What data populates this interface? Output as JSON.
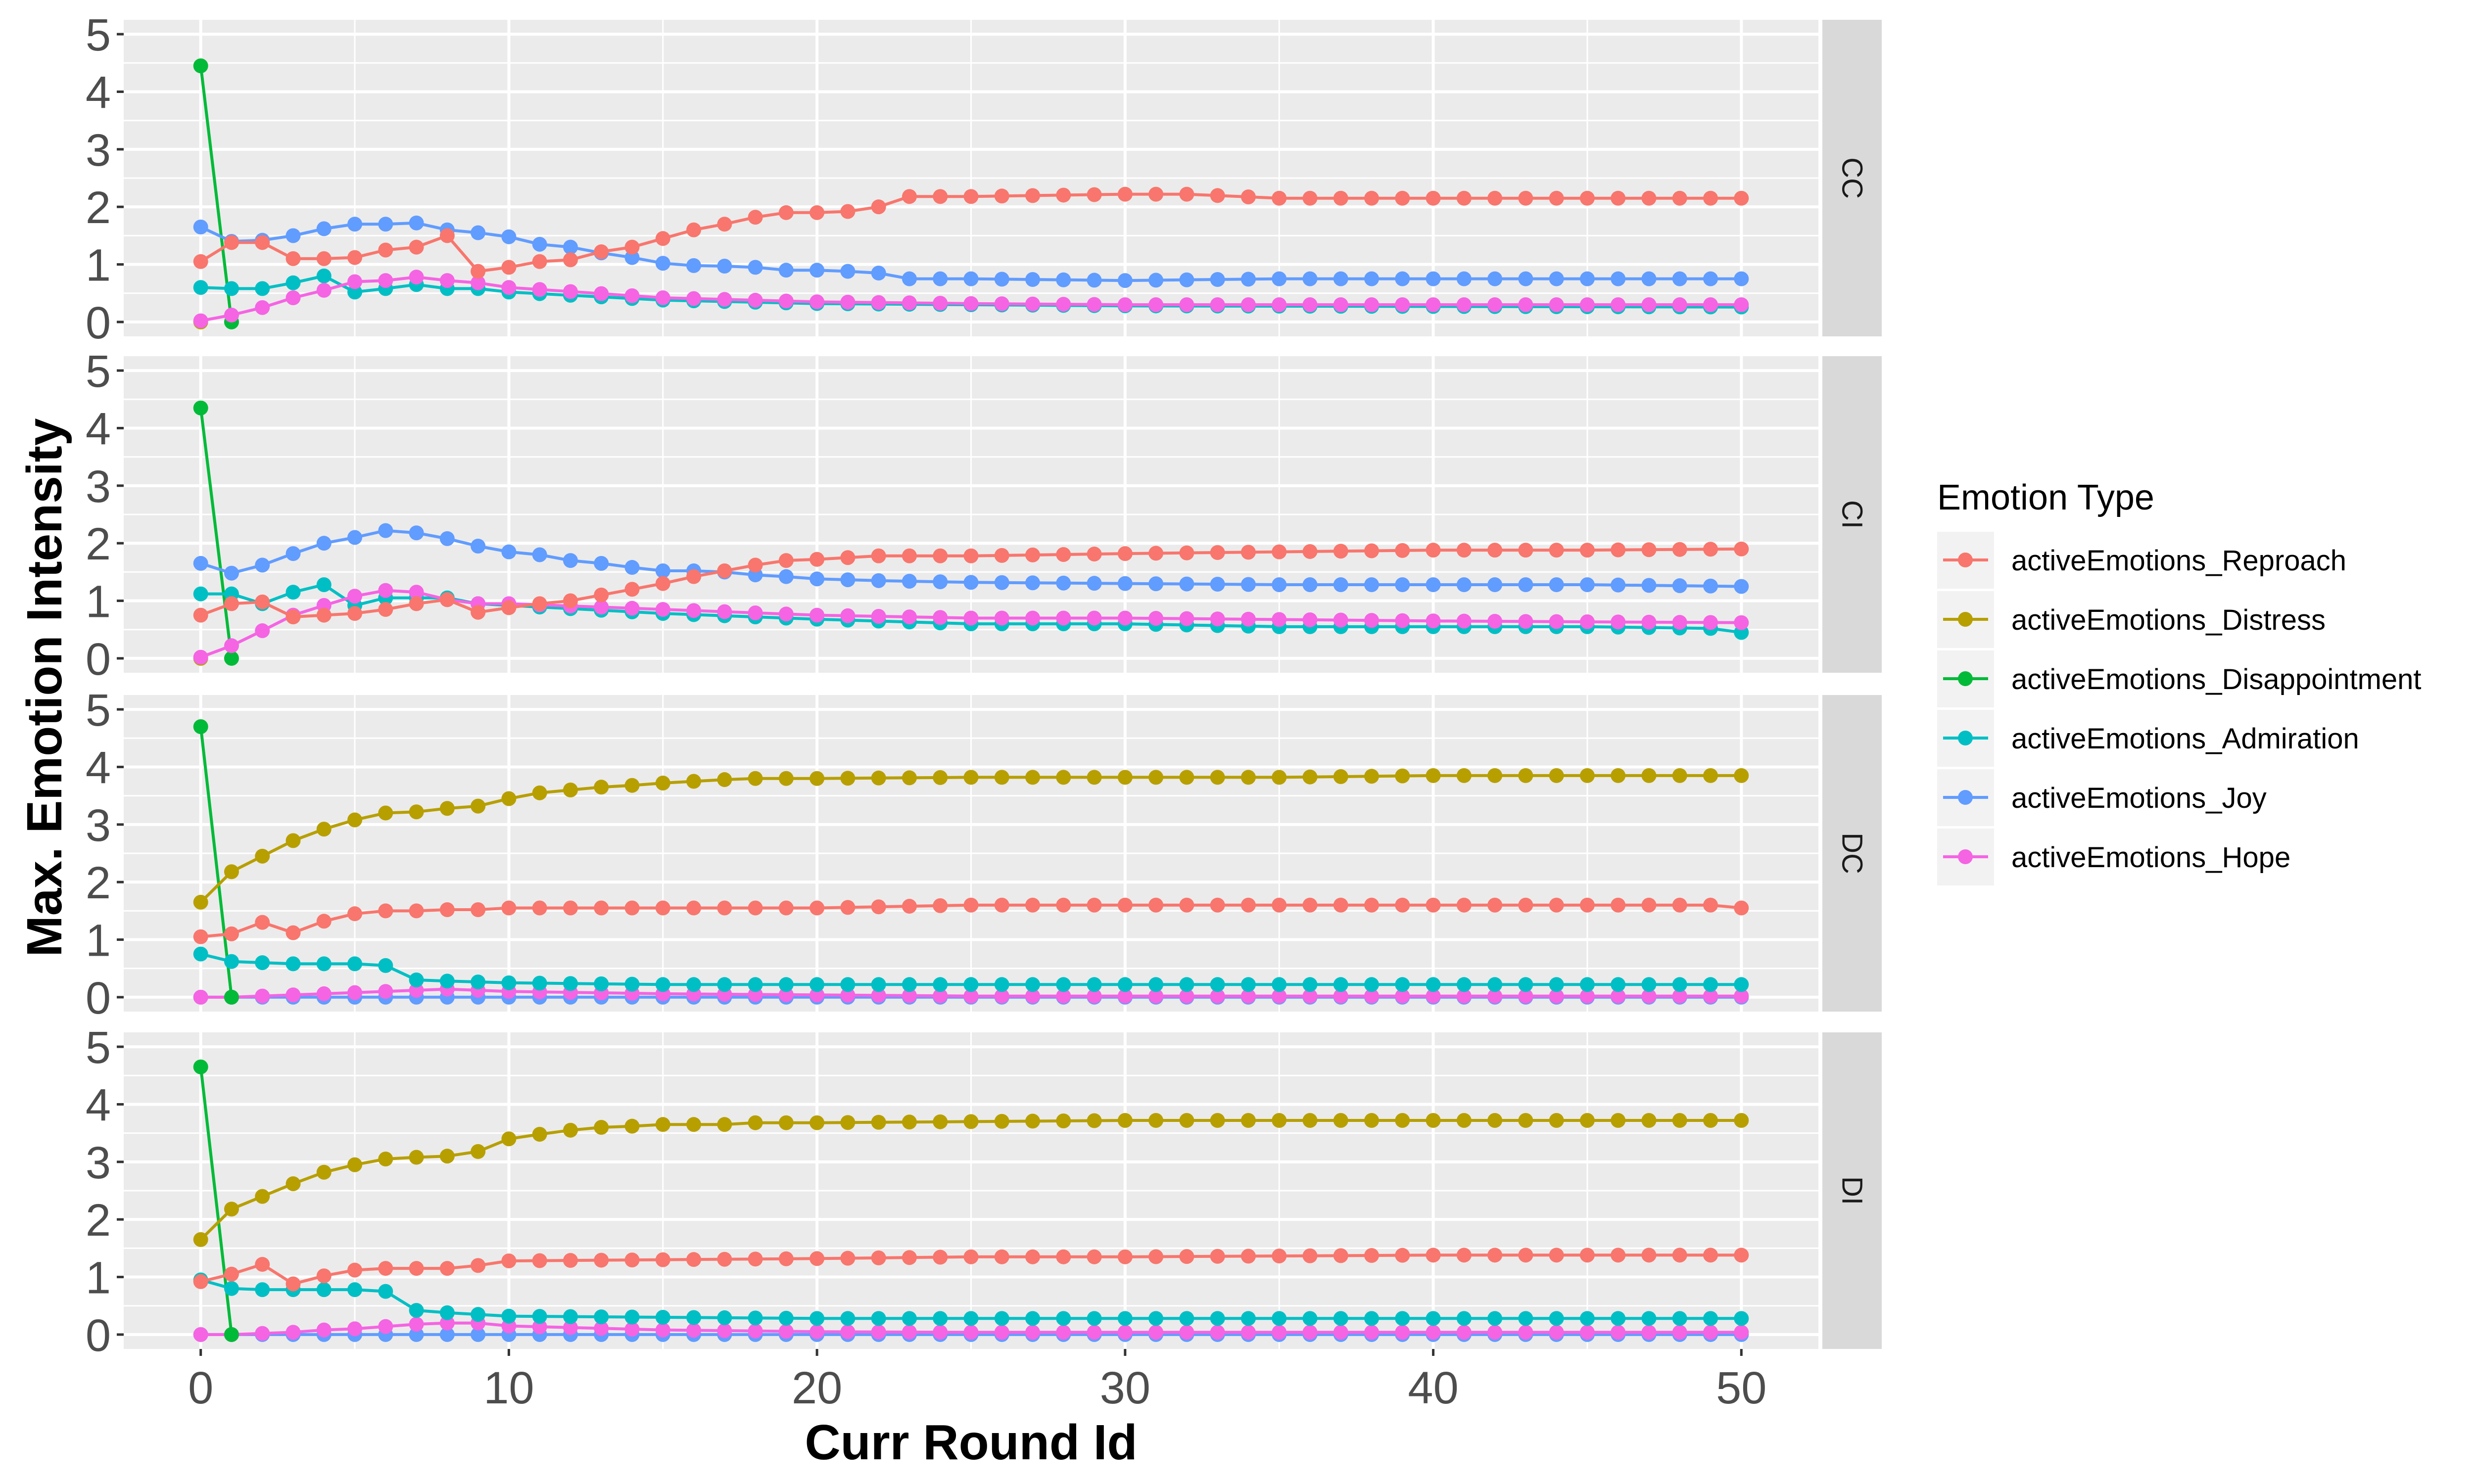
{
  "chart_data": {
    "type": "line",
    "facet_layout": "vertical facets, strip labels on right",
    "xlabel": "Curr Round Id",
    "ylabel": "Max. Emotion Intensity",
    "xlim": [
      -2.5,
      52.5
    ],
    "ylim": [
      -0.25,
      5.25
    ],
    "x_ticks": [
      0,
      10,
      20,
      30,
      40,
      50
    ],
    "y_ticks": [
      0,
      1,
      2,
      3,
      4,
      5
    ],
    "grid": true,
    "legend": {
      "title": "Emotion Type",
      "placement": "right",
      "entries": [
        {
          "name": "activeEmotions_Reproach",
          "color": "#F8766D"
        },
        {
          "name": "activeEmotions_Distress",
          "color": "#B79F00"
        },
        {
          "name": "activeEmotions_Disappointment",
          "color": "#00BA38"
        },
        {
          "name": "activeEmotions_Admiration",
          "color": "#00BFC4"
        },
        {
          "name": "activeEmotions_Joy",
          "color": "#619CFF"
        },
        {
          "name": "activeEmotions_Hope",
          "color": "#F564E3"
        }
      ]
    },
    "panels": [
      {
        "label": "CC",
        "series": [
          {
            "name": "activeEmotions_Distress",
            "x": [
              0
            ],
            "y": [
              0
            ]
          },
          {
            "name": "activeEmotions_Disappointment",
            "x": [
              0,
              1
            ],
            "y": [
              4.45,
              0
            ]
          },
          {
            "name": "activeEmotions_Admiration",
            "x": [
              0,
              1,
              2,
              3,
              4,
              5,
              6,
              7,
              8,
              9,
              10,
              15,
              20,
              25,
              30,
              40,
              50
            ],
            "y": [
              0.6,
              0.58,
              0.58,
              0.68,
              0.8,
              0.52,
              0.58,
              0.65,
              0.58,
              0.58,
              0.52,
              0.38,
              0.32,
              0.3,
              0.28,
              0.27,
              0.26
            ]
          },
          {
            "name": "activeEmotions_Hope",
            "x": [
              0,
              1,
              2,
              3,
              4,
              5,
              6,
              7,
              8,
              9,
              10,
              15,
              20,
              25,
              30,
              40,
              50
            ],
            "y": [
              0.02,
              0.12,
              0.25,
              0.42,
              0.55,
              0.7,
              0.72,
              0.78,
              0.72,
              0.68,
              0.6,
              0.42,
              0.35,
              0.32,
              0.3,
              0.3,
              0.3
            ]
          },
          {
            "name": "activeEmotions_Joy",
            "x": [
              0,
              1,
              2,
              3,
              4,
              5,
              6,
              7,
              8,
              9,
              10,
              11,
              12,
              13,
              14,
              15,
              16,
              17,
              18,
              19,
              20,
              21,
              22,
              23,
              25,
              30,
              35,
              40,
              45,
              50
            ],
            "y": [
              1.65,
              1.4,
              1.42,
              1.5,
              1.62,
              1.7,
              1.7,
              1.72,
              1.6,
              1.55,
              1.48,
              1.35,
              1.3,
              1.2,
              1.12,
              1.02,
              0.98,
              0.97,
              0.95,
              0.9,
              0.9,
              0.88,
              0.85,
              0.75,
              0.75,
              0.72,
              0.75,
              0.75,
              0.75,
              0.75
            ]
          },
          {
            "name": "activeEmotions_Reproach",
            "x": [
              0,
              1,
              2,
              3,
              4,
              5,
              6,
              7,
              8,
              9,
              10,
              11,
              12,
              13,
              14,
              15,
              16,
              17,
              18,
              19,
              20,
              21,
              22,
              23,
              25,
              30,
              32,
              35,
              40,
              45,
              50
            ],
            "y": [
              1.05,
              1.38,
              1.38,
              1.1,
              1.1,
              1.12,
              1.25,
              1.3,
              1.5,
              0.88,
              0.95,
              1.05,
              1.08,
              1.22,
              1.3,
              1.45,
              1.6,
              1.7,
              1.82,
              1.9,
              1.9,
              1.92,
              2.0,
              2.18,
              2.18,
              2.22,
              2.22,
              2.15,
              2.15,
              2.15,
              2.15
            ]
          }
        ]
      },
      {
        "label": "CI",
        "series": [
          {
            "name": "activeEmotions_Distress",
            "x": [
              0
            ],
            "y": [
              0
            ]
          },
          {
            "name": "activeEmotions_Disappointment",
            "x": [
              0,
              1
            ],
            "y": [
              4.35,
              0
            ]
          },
          {
            "name": "activeEmotions_Admiration",
            "x": [
              0,
              1,
              2,
              3,
              4,
              5,
              6,
              7,
              8,
              9,
              10,
              15,
              20,
              25,
              30,
              35,
              40,
              45,
              49,
              50
            ],
            "y": [
              1.12,
              1.12,
              0.95,
              1.15,
              1.28,
              0.92,
              1.05,
              1.05,
              1.05,
              0.95,
              0.92,
              0.78,
              0.68,
              0.6,
              0.6,
              0.55,
              0.55,
              0.55,
              0.52,
              0.45
            ]
          },
          {
            "name": "activeEmotions_Hope",
            "x": [
              0,
              1,
              2,
              3,
              4,
              5,
              6,
              7,
              8,
              9,
              10,
              15,
              20,
              25,
              30,
              40,
              50
            ],
            "y": [
              0.02,
              0.22,
              0.48,
              0.75,
              0.92,
              1.08,
              1.18,
              1.15,
              1.02,
              0.95,
              0.95,
              0.85,
              0.75,
              0.7,
              0.7,
              0.65,
              0.62
            ]
          },
          {
            "name": "activeEmotions_Joy",
            "x": [
              0,
              1,
              2,
              3,
              4,
              5,
              6,
              7,
              8,
              9,
              10,
              11,
              12,
              13,
              14,
              15,
              16,
              17,
              18,
              19,
              20,
              22,
              25,
              30,
              35,
              40,
              45,
              50
            ],
            "y": [
              1.65,
              1.48,
              1.62,
              1.82,
              2.0,
              2.1,
              2.22,
              2.18,
              2.08,
              1.95,
              1.85,
              1.8,
              1.7,
              1.65,
              1.58,
              1.52,
              1.52,
              1.5,
              1.45,
              1.42,
              1.38,
              1.35,
              1.32,
              1.3,
              1.28,
              1.28,
              1.28,
              1.25
            ]
          },
          {
            "name": "activeEmotions_Reproach",
            "x": [
              0,
              1,
              2,
              3,
              4,
              5,
              6,
              7,
              8,
              9,
              10,
              11,
              12,
              13,
              14,
              15,
              16,
              17,
              18,
              19,
              20,
              22,
              25,
              30,
              35,
              40,
              45,
              50
            ],
            "y": [
              0.75,
              0.95,
              0.98,
              0.72,
              0.75,
              0.78,
              0.85,
              0.95,
              1.02,
              0.8,
              0.88,
              0.95,
              1.0,
              1.1,
              1.2,
              1.3,
              1.42,
              1.52,
              1.62,
              1.7,
              1.72,
              1.78,
              1.78,
              1.82,
              1.85,
              1.88,
              1.88,
              1.9
            ]
          }
        ]
      },
      {
        "label": "DC",
        "series": [
          {
            "name": "activeEmotions_Joy",
            "x": [
              0,
              1,
              2,
              3,
              4,
              5,
              10,
              20,
              30,
              40,
              50
            ],
            "y": [
              0,
              0,
              0,
              0,
              0,
              0,
              0,
              0,
              0,
              0,
              0
            ]
          },
          {
            "name": "activeEmotions_Hope",
            "x": [
              0,
              1,
              2,
              3,
              4,
              5,
              6,
              7,
              8,
              9,
              10,
              15,
              20,
              25,
              30,
              40,
              50
            ],
            "y": [
              0,
              0,
              0.02,
              0.04,
              0.06,
              0.08,
              0.1,
              0.12,
              0.14,
              0.12,
              0.1,
              0.06,
              0.04,
              0.02,
              0.02,
              0.02,
              0.02
            ]
          },
          {
            "name": "activeEmotions_Disappointment",
            "x": [
              0,
              1
            ],
            "y": [
              4.7,
              0
            ]
          },
          {
            "name": "activeEmotions_Admiration",
            "x": [
              0,
              1,
              2,
              3,
              4,
              5,
              6,
              7,
              8,
              10,
              15,
              20,
              30,
              40,
              50
            ],
            "y": [
              0.75,
              0.62,
              0.6,
              0.58,
              0.58,
              0.58,
              0.55,
              0.3,
              0.28,
              0.25,
              0.22,
              0.22,
              0.22,
              0.22,
              0.22
            ]
          },
          {
            "name": "activeEmotions_Reproach",
            "x": [
              0,
              1,
              2,
              3,
              4,
              5,
              6,
              7,
              8,
              9,
              10,
              15,
              20,
              25,
              30,
              40,
              49,
              50
            ],
            "y": [
              1.05,
              1.1,
              1.3,
              1.12,
              1.32,
              1.45,
              1.5,
              1.5,
              1.52,
              1.52,
              1.55,
              1.55,
              1.55,
              1.6,
              1.6,
              1.6,
              1.6,
              1.55
            ]
          },
          {
            "name": "activeEmotions_Distress",
            "x": [
              0,
              1,
              2,
              3,
              4,
              5,
              6,
              7,
              8,
              9,
              10,
              11,
              12,
              13,
              14,
              15,
              16,
              17,
              18,
              19,
              20,
              25,
              30,
              35,
              40,
              45,
              50
            ],
            "y": [
              1.65,
              2.18,
              2.45,
              2.72,
              2.92,
              3.08,
              3.2,
              3.22,
              3.28,
              3.32,
              3.45,
              3.55,
              3.6,
              3.65,
              3.68,
              3.72,
              3.75,
              3.78,
              3.8,
              3.8,
              3.8,
              3.82,
              3.82,
              3.82,
              3.85,
              3.85,
              3.85
            ]
          }
        ]
      },
      {
        "label": "DI",
        "series": [
          {
            "name": "activeEmotions_Joy",
            "x": [
              0,
              1,
              2,
              3,
              4,
              5,
              10,
              20,
              30,
              40,
              50
            ],
            "y": [
              0,
              0,
              0,
              0,
              0,
              0,
              0,
              0,
              0,
              0,
              0
            ]
          },
          {
            "name": "activeEmotions_Hope",
            "x": [
              0,
              1,
              2,
              3,
              4,
              5,
              6,
              7,
              8,
              9,
              10,
              15,
              20,
              25,
              30,
              40,
              50
            ],
            "y": [
              0,
              0,
              0.02,
              0.04,
              0.08,
              0.1,
              0.14,
              0.18,
              0.2,
              0.2,
              0.15,
              0.08,
              0.05,
              0.04,
              0.04,
              0.04,
              0.04
            ]
          },
          {
            "name": "activeEmotions_Disappointment",
            "x": [
              0,
              1
            ],
            "y": [
              4.65,
              0
            ]
          },
          {
            "name": "activeEmotions_Admiration",
            "x": [
              0,
              1,
              2,
              3,
              4,
              5,
              6,
              7,
              8,
              9,
              10,
              15,
              20,
              30,
              40,
              50
            ],
            "y": [
              0.95,
              0.8,
              0.78,
              0.78,
              0.78,
              0.78,
              0.75,
              0.42,
              0.38,
              0.35,
              0.32,
              0.3,
              0.28,
              0.28,
              0.28,
              0.28
            ]
          },
          {
            "name": "activeEmotions_Reproach",
            "x": [
              0,
              1,
              2,
              3,
              4,
              5,
              6,
              7,
              8,
              9,
              10,
              15,
              20,
              25,
              30,
              40,
              50
            ],
            "y": [
              0.92,
              1.05,
              1.22,
              0.88,
              1.02,
              1.12,
              1.15,
              1.15,
              1.15,
              1.2,
              1.28,
              1.3,
              1.32,
              1.35,
              1.35,
              1.38,
              1.38
            ]
          },
          {
            "name": "activeEmotions_Distress",
            "x": [
              0,
              1,
              2,
              3,
              4,
              5,
              6,
              7,
              8,
              9,
              10,
              11,
              12,
              13,
              14,
              15,
              16,
              17,
              18,
              19,
              20,
              25,
              30,
              40,
              50
            ],
            "y": [
              1.65,
              2.18,
              2.4,
              2.62,
              2.82,
              2.95,
              3.05,
              3.08,
              3.1,
              3.18,
              3.4,
              3.48,
              3.55,
              3.6,
              3.62,
              3.65,
              3.65,
              3.65,
              3.68,
              3.68,
              3.68,
              3.7,
              3.72,
              3.72,
              3.72
            ]
          }
        ]
      }
    ]
  }
}
